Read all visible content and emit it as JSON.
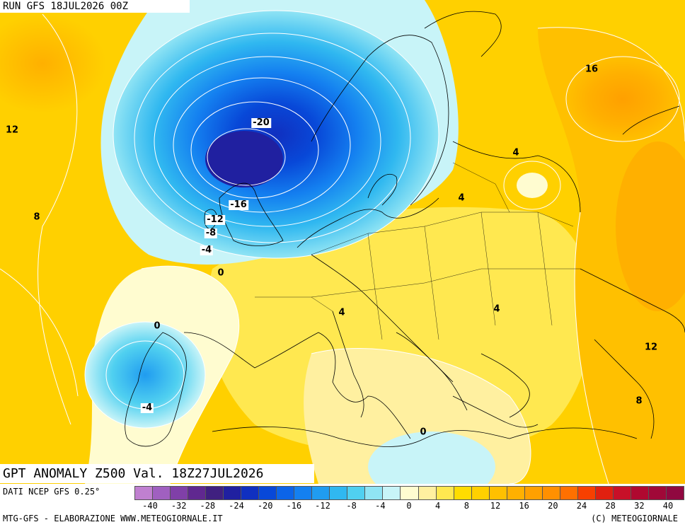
{
  "header": {
    "run_label": "RUN GFS 18JUL2026 00Z"
  },
  "title": {
    "text": "GPT ANOMALY Z500 Val. 18Z27JUL2026"
  },
  "footer": {
    "source": "DATI NCEP GFS 0.25°",
    "credit": "MTG-GFS - ELABORAZIONE WWW.METEOGIORNALE.IT",
    "copyright": "(C) METEOGIORNALE"
  },
  "legend": {
    "ticks": [
      "-40",
      "-32",
      "-28",
      "-24",
      "-20",
      "-16",
      "-12",
      "-8",
      "-4",
      "0",
      "4",
      "8",
      "12",
      "16",
      "20",
      "24",
      "28",
      "32",
      "40"
    ],
    "colors": [
      "#c080d0",
      "#a060c0",
      "#8040a8",
      "#602890",
      "#402080",
      "#2020a0",
      "#1030c0",
      "#0848d8",
      "#0c64e8",
      "#1480f0",
      "#209cf0",
      "#30b8f0",
      "#50d0f0",
      "#90e4f4",
      "#c8f4f8",
      "#fffcd0",
      "#fff0a0",
      "#ffe850",
      "#ffdc00",
      "#ffd000",
      "#ffc000",
      "#ffb000",
      "#ffa000",
      "#ff9000",
      "#ff7000",
      "#f84000",
      "#e02010",
      "#c81028",
      "#b00830",
      "#a00838",
      "#900840"
    ]
  },
  "contour_labels": [
    {
      "text": "-20",
      "boxed": true
    },
    {
      "text": "-16",
      "boxed": true
    },
    {
      "text": "-12",
      "boxed": true
    },
    {
      "text": "-8",
      "boxed": true
    },
    {
      "text": "-4",
      "boxed": true
    },
    {
      "text": "0",
      "boxed": false
    },
    {
      "text": "0",
      "boxed": false
    },
    {
      "text": "0",
      "boxed": false
    },
    {
      "text": "-4",
      "boxed": true
    },
    {
      "text": "4",
      "boxed": false
    },
    {
      "text": "4",
      "boxed": false
    },
    {
      "text": "4",
      "boxed": false
    },
    {
      "text": "4",
      "boxed": false
    },
    {
      "text": "8",
      "boxed": false
    },
    {
      "text": "8",
      "boxed": false
    },
    {
      "text": "12",
      "boxed": false
    },
    {
      "text": "12",
      "boxed": false
    },
    {
      "text": "16",
      "boxed": false
    }
  ]
}
